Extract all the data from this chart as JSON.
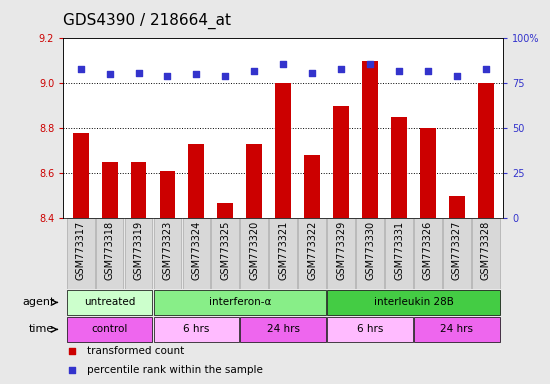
{
  "title": "GDS4390 / 218664_at",
  "samples": [
    "GSM773317",
    "GSM773318",
    "GSM773319",
    "GSM773323",
    "GSM773324",
    "GSM773325",
    "GSM773320",
    "GSM773321",
    "GSM773322",
    "GSM773329",
    "GSM773330",
    "GSM773331",
    "GSM773326",
    "GSM773327",
    "GSM773328"
  ],
  "bar_values": [
    8.78,
    8.65,
    8.65,
    8.61,
    8.73,
    8.47,
    8.73,
    9.0,
    8.68,
    8.9,
    9.1,
    8.85,
    8.8,
    8.5,
    9.0
  ],
  "dot_values": [
    83,
    80,
    81,
    79,
    80,
    79,
    82,
    86,
    81,
    83,
    86,
    82,
    82,
    79,
    83
  ],
  "ylim_left": [
    8.4,
    9.2
  ],
  "ylim_right": [
    0,
    100
  ],
  "yticks_left": [
    8.4,
    8.6,
    8.8,
    9.0,
    9.2
  ],
  "yticks_right": [
    0,
    25,
    50,
    75,
    100
  ],
  "bar_color": "#cc0000",
  "dot_color": "#3333cc",
  "gridline_y": [
    9.0,
    8.8,
    8.6
  ],
  "agent_groups": [
    {
      "label": "untreated",
      "start": 0,
      "end": 3,
      "color": "#ccffcc"
    },
    {
      "label": "interferon-α",
      "start": 3,
      "end": 9,
      "color": "#88ee88"
    },
    {
      "label": "interleukin 28B",
      "start": 9,
      "end": 15,
      "color": "#44cc44"
    }
  ],
  "time_groups": [
    {
      "label": "control",
      "start": 0,
      "end": 3,
      "color": "#ee66ee"
    },
    {
      "label": "6 hrs",
      "start": 3,
      "end": 6,
      "color": "#ffbbff"
    },
    {
      "label": "24 hrs",
      "start": 6,
      "end": 9,
      "color": "#ee66ee"
    },
    {
      "label": "6 hrs",
      "start": 9,
      "end": 12,
      "color": "#ffbbff"
    },
    {
      "label": "24 hrs",
      "start": 12,
      "end": 15,
      "color": "#ee66ee"
    }
  ],
  "legend_items": [
    {
      "label": "transformed count",
      "color": "#cc0000",
      "marker": "s"
    },
    {
      "label": "percentile rank within the sample",
      "color": "#3333cc",
      "marker": "s"
    }
  ],
  "title_fontsize": 11,
  "tick_fontsize": 7,
  "label_fontsize": 8,
  "bar_width": 0.55,
  "background_color": "#e8e8e8",
  "plot_bg": "#ffffff",
  "xtick_bg": "#d8d8d8"
}
